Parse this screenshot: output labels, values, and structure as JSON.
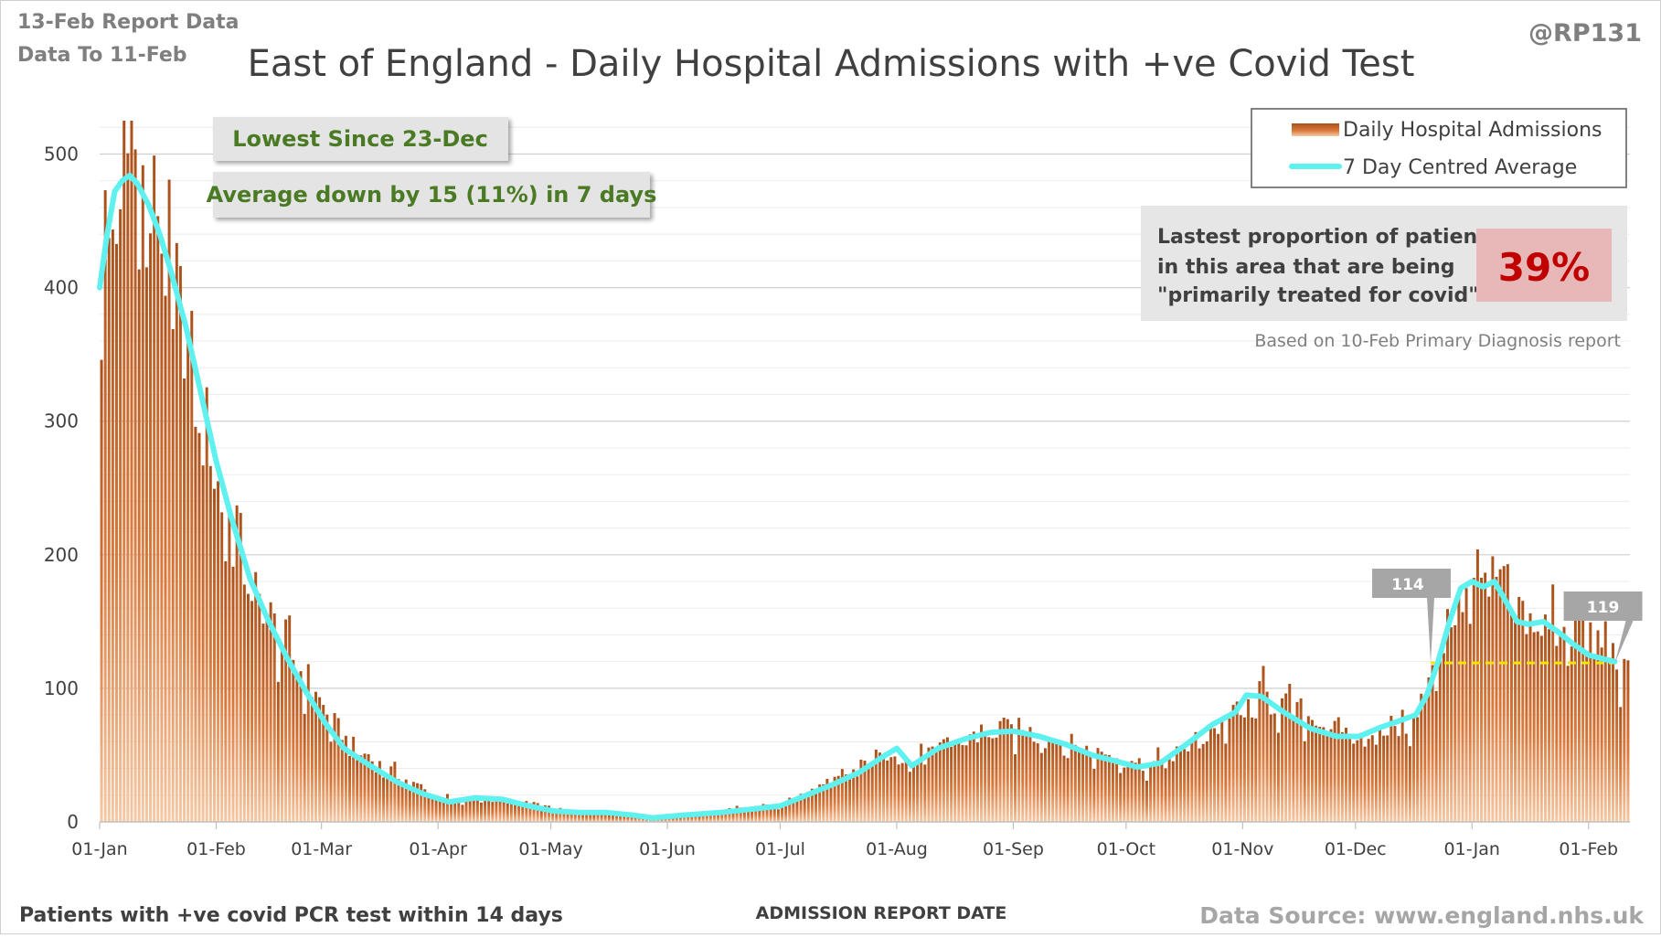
{
  "header": {
    "report_line1": "13-Feb Report Data",
    "report_line2": "Data To 11-Feb",
    "handle": "@RP131"
  },
  "footer": {
    "left_note": "Patients with +ve covid PCR test within 14 days",
    "source": "Data Source: www.england.nhs.uk"
  },
  "callouts": {
    "lowest": "Lowest Since 23-Dec",
    "average_change": "Average down by 15 (11%) in 7 days"
  },
  "proportion_box": {
    "text_line1": "Lastest proportion of patients",
    "text_line2": "in this area that are being",
    "text_line3": "\"primarily treated for covid\".",
    "value": "39%",
    "note": "Based on 10-Feb Primary Diagnosis report"
  },
  "colors": {
    "bar": "#b5561c",
    "bar_light": "#f6c8a3",
    "average_line": "#5ff0f0",
    "reference_line": "#f2e600",
    "title_text": "#404040",
    "callout_text": "#4a7a23",
    "value_red": "#c00000"
  },
  "chart_data": {
    "type": "bar",
    "title": "East of England - Daily Hospital Admissions with +ve Covid Test",
    "xlabel": "ADMISSION REPORT DATE",
    "ylabel": "",
    "ylim": [
      0,
      525
    ],
    "yticks": [
      0,
      100,
      200,
      300,
      400,
      500
    ],
    "grid": true,
    "legend_position": "top-right",
    "x_ticks": [
      "01-Jan",
      "01-Feb",
      "01-Mar",
      "01-Apr",
      "01-May",
      "01-Jun",
      "01-Jul",
      "01-Aug",
      "01-Sep",
      "01-Oct",
      "01-Nov",
      "01-Dec",
      "01-Jan",
      "01-Feb"
    ],
    "x_tick_dates": [
      "2021-01-01",
      "2021-02-01",
      "2021-03-01",
      "2021-04-01",
      "2021-05-01",
      "2021-06-01",
      "2021-07-01",
      "2021-08-01",
      "2021-09-01",
      "2021-10-01",
      "2021-11-01",
      "2021-12-01",
      "2022-01-01",
      "2022-02-01"
    ],
    "x_start": "2021-01-01",
    "x_end": "2022-02-11",
    "series": [
      {
        "name": "Daily Hospital Admissions",
        "kind": "bar",
        "note": "one bar per day; values approximated from the 7-day average with daily scatter",
        "anchor_dates": [
          "2021-01-01",
          "2021-01-04",
          "2021-01-07",
          "2021-01-10",
          "2021-01-14",
          "2021-01-18",
          "2021-01-23",
          "2021-01-28",
          "2021-02-01",
          "2021-02-06",
          "2021-02-11",
          "2021-02-16",
          "2021-02-21",
          "2021-02-26",
          "2021-03-03",
          "2021-03-08",
          "2021-03-15",
          "2021-03-22",
          "2021-03-29",
          "2021-04-05",
          "2021-04-12",
          "2021-04-19",
          "2021-04-26",
          "2021-05-03",
          "2021-05-10",
          "2021-05-17",
          "2021-05-24",
          "2021-05-31",
          "2021-06-10",
          "2021-06-20",
          "2021-06-30",
          "2021-07-05",
          "2021-07-12",
          "2021-07-19",
          "2021-07-26",
          "2021-07-30",
          "2021-08-04",
          "2021-08-10",
          "2021-08-18",
          "2021-08-25",
          "2021-09-01",
          "2021-09-08",
          "2021-09-15",
          "2021-09-22",
          "2021-09-29",
          "2021-10-06",
          "2021-10-13",
          "2021-10-20",
          "2021-10-27",
          "2021-11-01",
          "2021-11-06",
          "2021-11-12",
          "2021-11-19",
          "2021-11-26",
          "2021-12-02",
          "2021-12-07",
          "2021-12-12",
          "2021-12-17",
          "2021-12-21",
          "2021-12-25",
          "2021-12-30",
          "2022-01-03",
          "2022-01-07",
          "2022-01-11",
          "2022-01-15",
          "2022-01-20",
          "2022-01-25",
          "2022-01-30",
          "2022-02-04",
          "2022-02-08",
          "2022-02-11"
        ],
        "anchor_values": [
          385,
          450,
          500,
          500,
          455,
          430,
          360,
          300,
          250,
          210,
          168,
          145,
          122,
          100,
          75,
          57,
          44,
          33,
          22,
          15,
          17,
          16,
          13,
          9,
          7,
          6,
          5,
          4,
          7,
          10,
          12,
          18,
          27,
          36,
          48,
          55,
          43,
          52,
          62,
          68,
          68,
          65,
          58,
          52,
          48,
          42,
          48,
          62,
          75,
          80,
          95,
          85,
          78,
          68,
          64,
          67,
          72,
          76,
          108,
          150,
          172,
          178,
          176,
          165,
          150,
          148,
          150,
          143,
          133,
          122,
          105
        ]
      },
      {
        "name": "7 Day Centred Average",
        "kind": "line",
        "dates": [
          "2021-01-01",
          "2021-01-03",
          "2021-01-05",
          "2021-01-07",
          "2021-01-09",
          "2021-01-11",
          "2021-01-14",
          "2021-01-17",
          "2021-01-20",
          "2021-01-24",
          "2021-01-28",
          "2021-02-01",
          "2021-02-05",
          "2021-02-10",
          "2021-02-15",
          "2021-02-20",
          "2021-02-25",
          "2021-03-02",
          "2021-03-07",
          "2021-03-14",
          "2021-03-21",
          "2021-03-28",
          "2021-04-04",
          "2021-04-11",
          "2021-04-18",
          "2021-04-25",
          "2021-05-02",
          "2021-05-09",
          "2021-05-16",
          "2021-05-23",
          "2021-05-28",
          "2021-06-05",
          "2021-06-15",
          "2021-06-25",
          "2021-07-01",
          "2021-07-08",
          "2021-07-15",
          "2021-07-22",
          "2021-07-29",
          "2021-08-01",
          "2021-08-05",
          "2021-08-12",
          "2021-08-19",
          "2021-08-26",
          "2021-09-01",
          "2021-09-08",
          "2021-09-15",
          "2021-09-22",
          "2021-09-29",
          "2021-10-04",
          "2021-10-10",
          "2021-10-17",
          "2021-10-24",
          "2021-10-30",
          "2021-11-02",
          "2021-11-06",
          "2021-11-12",
          "2021-11-19",
          "2021-11-26",
          "2021-12-02",
          "2021-12-07",
          "2021-12-12",
          "2021-12-17",
          "2021-12-20",
          "2021-12-23",
          "2021-12-26",
          "2021-12-29",
          "2022-01-01",
          "2022-01-04",
          "2022-01-07",
          "2022-01-10",
          "2022-01-13",
          "2022-01-16",
          "2022-01-20",
          "2022-01-24",
          "2022-01-28",
          "2022-02-01",
          "2022-02-05",
          "2022-02-08"
        ],
        "values": [
          400,
          440,
          472,
          480,
          484,
          478,
          462,
          440,
          412,
          370,
          320,
          270,
          228,
          182,
          150,
          122,
          97,
          74,
          55,
          42,
          30,
          21,
          15,
          18,
          17,
          12,
          8,
          7,
          7,
          5,
          3,
          5,
          7,
          10,
          12,
          20,
          28,
          37,
          50,
          55,
          42,
          55,
          62,
          67,
          68,
          64,
          58,
          50,
          45,
          41,
          44,
          58,
          73,
          82,
          95,
          94,
          82,
          70,
          64,
          64,
          70,
          75,
          80,
          95,
          120,
          150,
          175,
          180,
          176,
          180,
          165,
          150,
          148,
          150,
          142,
          133,
          125,
          122,
          120
        ]
      }
    ],
    "annotations": [
      {
        "label": "114",
        "date": "2021-12-21",
        "value": 119
      },
      {
        "label": "119",
        "date": "2022-02-08",
        "value": 119
      }
    ],
    "reference_line": {
      "value": 119,
      "from": "2021-12-21",
      "to": "2022-02-08"
    }
  }
}
